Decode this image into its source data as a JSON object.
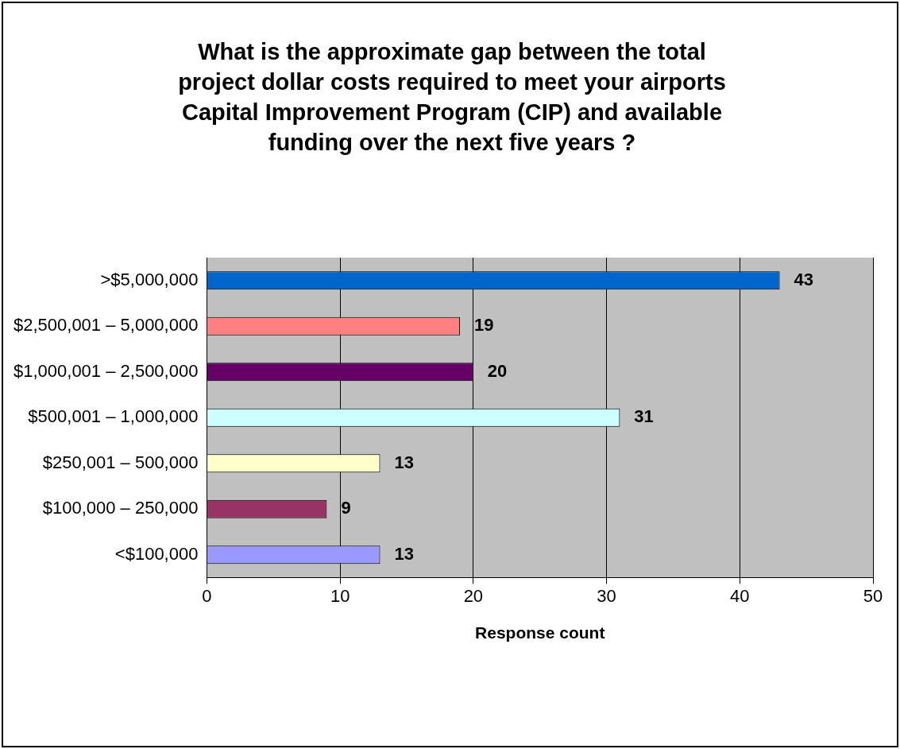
{
  "chart_data": {
    "type": "bar",
    "orientation": "horizontal",
    "title": "What is the approximate gap between the total project dollar costs required to meet your airports Capital Improvement Program (CIP) and available funding over the next five years ?",
    "xlabel": "Response count",
    "categories": [
      ">$5,000,000",
      "$2,500,001 – 5,000,000",
      "$1,000,001 – 2,500,000",
      "$500,001 – 1,000,000",
      "$250,001 – 500,000",
      "$100,000 – 250,000",
      "<$100,000"
    ],
    "values": [
      43,
      19,
      20,
      31,
      13,
      9,
      13
    ],
    "colors": [
      "#0066cc",
      "#ff8080",
      "#660066",
      "#ccffff",
      "#ffffcc",
      "#993366",
      "#9999ff"
    ],
    "xlim": [
      0,
      50
    ],
    "xticks": [
      0,
      10,
      20,
      30,
      40,
      50
    ],
    "grid": "x",
    "legend": false,
    "data_labels": true
  }
}
